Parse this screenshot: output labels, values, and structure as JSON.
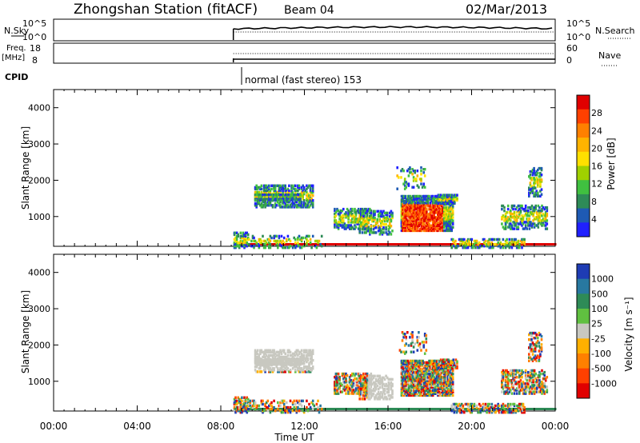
{
  "header": {
    "station": "Zhongshan Station (fitACF)",
    "beam": "Beam 04",
    "date": "02/Mar/2013"
  },
  "summary_panels": {
    "nsky_label": "N.Sky",
    "nsky_ticks": [
      "10^5",
      "10^0"
    ],
    "nsearch_label": "N.Search",
    "nsearch_ticks": [
      "10^5",
      "10^0"
    ],
    "freq_label": "Freq.",
    "freq_unit": "[MHz]",
    "freq_ticks": [
      "18",
      "8"
    ],
    "nave_label": "Nave",
    "nave_ticks": [
      "60",
      "0"
    ],
    "cpid_label": "CPID",
    "cpid_text": "normal (fast stereo) 153"
  },
  "chart_data": [
    {
      "type": "heatmap",
      "name": "power-panel",
      "ylabel": "Slant Range [km]",
      "yticks": [
        "4000",
        "3000",
        "2000",
        "1000"
      ],
      "ytick_values": [
        4000,
        3000,
        2000,
        1000
      ],
      "ylim": [
        180,
        4500
      ],
      "xlim": [
        0,
        24
      ],
      "colorbar": {
        "label": "Power [dB]",
        "ticks": [
          "28",
          "24",
          "20",
          "16",
          "12",
          "8",
          "4"
        ],
        "colors": [
          "#e00000",
          "#ff4000",
          "#ff8000",
          "#ffb300",
          "#ffe000",
          "#a0d000",
          "#40c040",
          "#2e8b57",
          "#1e5ab4",
          "#2020ff"
        ]
      }
    },
    {
      "type": "heatmap",
      "name": "velocity-panel",
      "ylabel": "Slant Range [km]",
      "yticks": [
        "4000",
        "3000",
        "2000",
        "1000"
      ],
      "ytick_values": [
        4000,
        3000,
        2000,
        1000
      ],
      "ylim": [
        180,
        4500
      ],
      "xlim": [
        0,
        24
      ],
      "colorbar": {
        "label": "Velocity [m s⁻¹]",
        "ticks": [
          "1000",
          "500",
          "100",
          "25",
          "-25",
          "-100",
          "-500",
          "-1000"
        ],
        "colors": [
          "#1e3cb4",
          "#2878a0",
          "#2e8b57",
          "#60c040",
          "#c8c8c0",
          "#ffb000",
          "#ff8000",
          "#ff4000",
          "#e00000"
        ]
      }
    }
  ],
  "xaxis": {
    "label": "Time UT",
    "ticks": [
      "00:00",
      "04:00",
      "08:00",
      "12:00",
      "16:00",
      "20:00",
      "00:00"
    ],
    "tick_hours": [
      0,
      4,
      8,
      12,
      16,
      20,
      24
    ]
  }
}
